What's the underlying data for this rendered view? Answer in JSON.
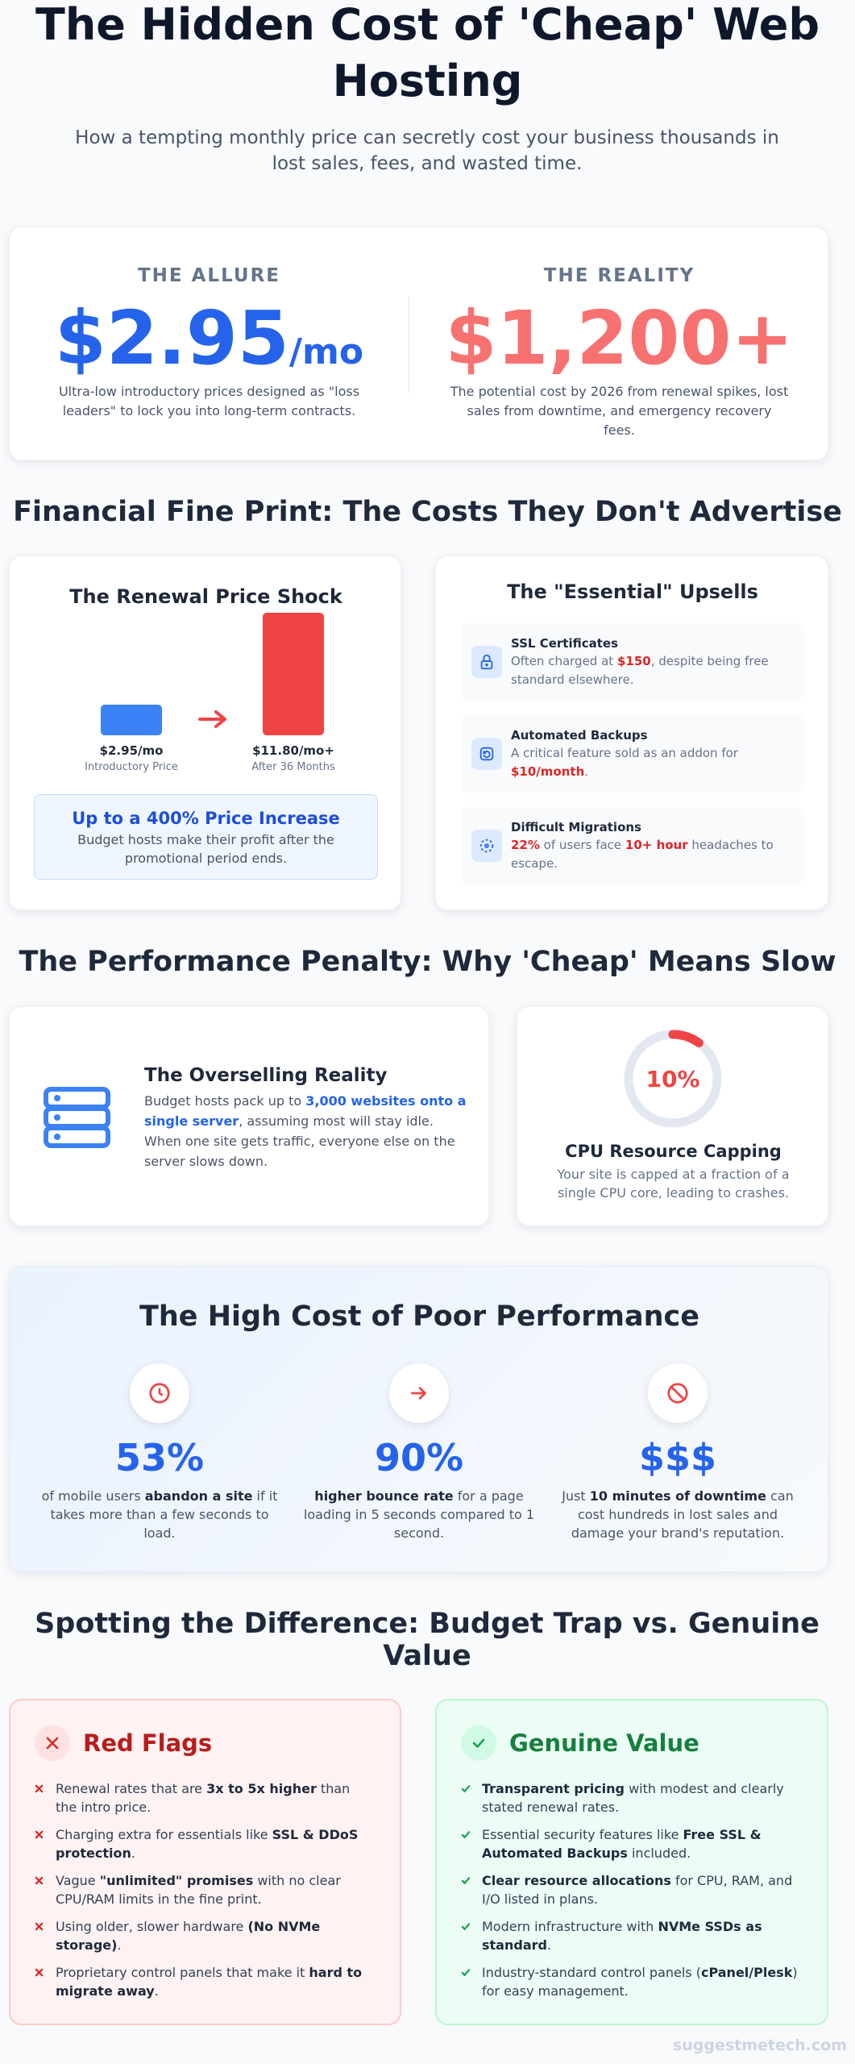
{
  "header": {
    "title": "The Hidden Cost of 'Cheap' Web Hosting",
    "subtitle": "How a tempting monthly price can secretly cost your business thousands in lost sales, fees, and wasted time."
  },
  "comparison": {
    "allure": {
      "label": "THE ALLURE",
      "price": "$2.95",
      "unit": "/mo",
      "description": "Ultra-low introductory prices designed as \"loss leaders\" to lock you into long-term contracts."
    },
    "reality": {
      "label": "THE REALITY",
      "price": "$1,200+",
      "description": "The potential cost by 2026 from renewal spikes, lost sales from downtime, and emergency recovery fees."
    }
  },
  "fine_print": {
    "heading": "Financial Fine Print: The Costs They Don't Advertise",
    "renewal": {
      "title": "The Renewal Price Shock",
      "chart": {
        "type": "bar",
        "bars": [
          {
            "value": 2.95,
            "label": "$2.95/mo",
            "caption": "Introductory Price",
            "color": "#3b82f6"
          },
          {
            "value": 11.8,
            "label": "$11.80/mo+",
            "caption": "After 36 Months",
            "color": "#ef4444"
          }
        ]
      },
      "callout": {
        "title": "Up to a 400% Price Increase",
        "text": "Budget hosts make their profit after the promotional period ends."
      }
    },
    "upsells": {
      "title": "The \"Essential\" Upsells",
      "items": [
        {
          "title": "SSL Certificates",
          "text": [
            "Often charged at ",
            {
              "text": "$150",
              "style": "red"
            },
            ", despite being free standard elsewhere."
          ]
        },
        {
          "title": "Automated Backups",
          "text": [
            "A critical feature sold as an addon for ",
            {
              "text": "$10/month",
              "style": "red"
            },
            "."
          ]
        },
        {
          "title": "Difficult Migrations",
          "text": [
            {
              "text": "22%",
              "style": "red"
            },
            " of users face ",
            {
              "text": "10+ hour",
              "style": "red"
            },
            " headaches to escape."
          ]
        }
      ]
    }
  },
  "performance": {
    "heading": "The Performance Penalty: Why 'Cheap' Means Slow",
    "overselling": {
      "title": "The Overselling Reality",
      "text": [
        "Budget hosts pack up to ",
        {
          "text": "3,000 websites onto a single server",
          "style": "blue"
        },
        ", assuming most will stay idle. When one site gets traffic, everyone else on the server slows down."
      ]
    },
    "capping": {
      "gauge": {
        "value": 10,
        "label": "10%",
        "color": "#ef4444"
      },
      "title": "CPU Resource Capping",
      "text": "Your site is capped at a fraction of a single CPU core, leading to crashes."
    }
  },
  "impact": {
    "title": "The High Cost of Poor Performance",
    "stats": [
      {
        "value": "53%",
        "text": [
          "of mobile users ",
          {
            "text": "abandon a site",
            "style": "bold"
          },
          " if it takes more than a few seconds to load."
        ]
      },
      {
        "value": "90%",
        "text": [
          {
            "text": "higher bounce rate",
            "style": "bold"
          },
          " for a page loading in 5 seconds compared to 1 second."
        ]
      },
      {
        "value": "$$$",
        "text": [
          "Just ",
          {
            "text": "10 minutes of downtime",
            "style": "bold"
          },
          " can cost hundreds in lost sales and damage your brand's reputation."
        ]
      }
    ]
  },
  "difference": {
    "heading": "Spotting the Difference: Budget Trap vs. Genuine Value",
    "red_flags": {
      "title": "Red Flags",
      "items": [
        [
          "Renewal rates that are ",
          {
            "text": "3x to 5x higher",
            "style": "bold"
          },
          " than the intro price."
        ],
        [
          "Charging extra for essentials like ",
          {
            "text": "SSL & DDoS protection",
            "style": "bold"
          },
          "."
        ],
        [
          "Vague ",
          {
            "text": "\"unlimited\" promises",
            "style": "bold"
          },
          " with no clear CPU/RAM limits in the fine print."
        ],
        [
          "Using older, slower hardware ",
          {
            "text": "(No NVMe storage)",
            "style": "bold"
          },
          "."
        ],
        [
          "Proprietary control panels that make it ",
          {
            "text": "hard to migrate away",
            "style": "bold"
          },
          "."
        ]
      ]
    },
    "genuine": {
      "title": "Genuine Value",
      "items": [
        [
          {
            "text": "Transparent pricing",
            "style": "bold"
          },
          " with modest and clearly stated renewal rates."
        ],
        [
          "Essential security features like ",
          {
            "text": "Free SSL & Automated Backups",
            "style": "bold"
          },
          " included."
        ],
        [
          {
            "text": "Clear resource allocations",
            "style": "bold"
          },
          " for CPU, RAM, and I/O listed in plans."
        ],
        [
          "Modern infrastructure with ",
          {
            "text": "NVMe SSDs as standard",
            "style": "bold"
          },
          "."
        ],
        [
          "Industry-standard control panels (",
          {
            "text": "cPanel/Plesk",
            "style": "bold"
          },
          ") for easy management."
        ]
      ]
    }
  },
  "footer": "suggestmetech.com"
}
